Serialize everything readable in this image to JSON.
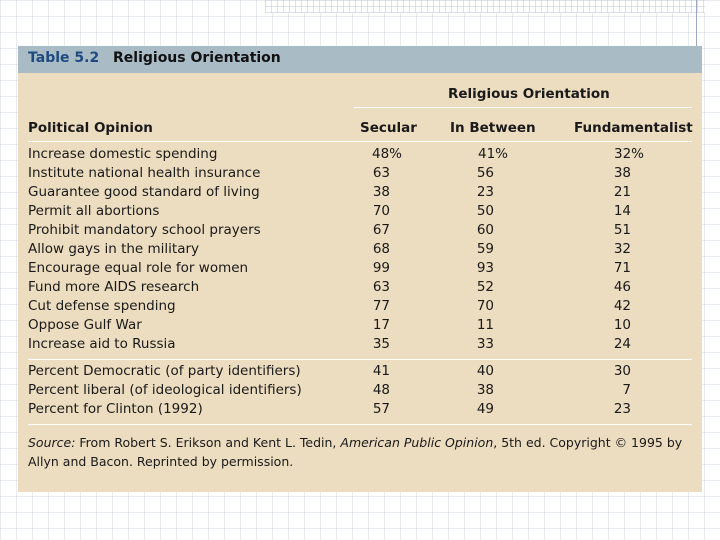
{
  "table": {
    "number": "Table 5.2",
    "title": "Religious Orientation",
    "group_header": "Religious Orientation",
    "columns": [
      "Political Opinion",
      "Secular",
      "In Between",
      "Fundamentalist"
    ],
    "rows": [
      {
        "label": "Increase domestic spending",
        "secular": "48%",
        "between": "41%",
        "fund": "32%"
      },
      {
        "label": "Institute national health insurance",
        "secular": "63",
        "between": "56",
        "fund": "38"
      },
      {
        "label": "Guarantee good standard of living",
        "secular": "38",
        "between": "23",
        "fund": "21"
      },
      {
        "label": "Permit all abortions",
        "secular": "70",
        "between": "50",
        "fund": "14"
      },
      {
        "label": "Prohibit mandatory school prayers",
        "secular": "67",
        "between": "60",
        "fund": "51"
      },
      {
        "label": "Allow gays in the military",
        "secular": "68",
        "between": "59",
        "fund": "32"
      },
      {
        "label": "Encourage equal role for women",
        "secular": "99",
        "between": "93",
        "fund": "71"
      },
      {
        "label": "Fund more AIDS research",
        "secular": "63",
        "between": "52",
        "fund": "46"
      },
      {
        "label": "Cut defense spending",
        "secular": "77",
        "between": "70",
        "fund": "42"
      },
      {
        "label": "Oppose Gulf War",
        "secular": "17",
        "between": "11",
        "fund": "10"
      },
      {
        "label": "Increase aid to Russia",
        "secular": "35",
        "between": "33",
        "fund": "24"
      }
    ],
    "summary_rows": [
      {
        "label": "Percent Democratic (of party identifiers)",
        "secular": "41",
        "between": "40",
        "fund": "30"
      },
      {
        "label": "Percent liberal (of ideological identifiers)",
        "secular": "48",
        "between": "38",
        "fund": "7"
      },
      {
        "label": "Percent for Clinton (1992)",
        "secular": "57",
        "between": "49",
        "fund": "23"
      }
    ],
    "source": {
      "prefix": "Source:",
      "text1": " From Robert S. Erikson and Kent L. Tedin, ",
      "book": "American Public Opinion",
      "text2": ", 5th ed. Copyright © 1995 by Allyn and Bacon. Reprinted by permission."
    },
    "colors": {
      "background": "#ecdcc0",
      "header_band": "#a9bcc6",
      "table_number": "#1e4a80"
    }
  }
}
